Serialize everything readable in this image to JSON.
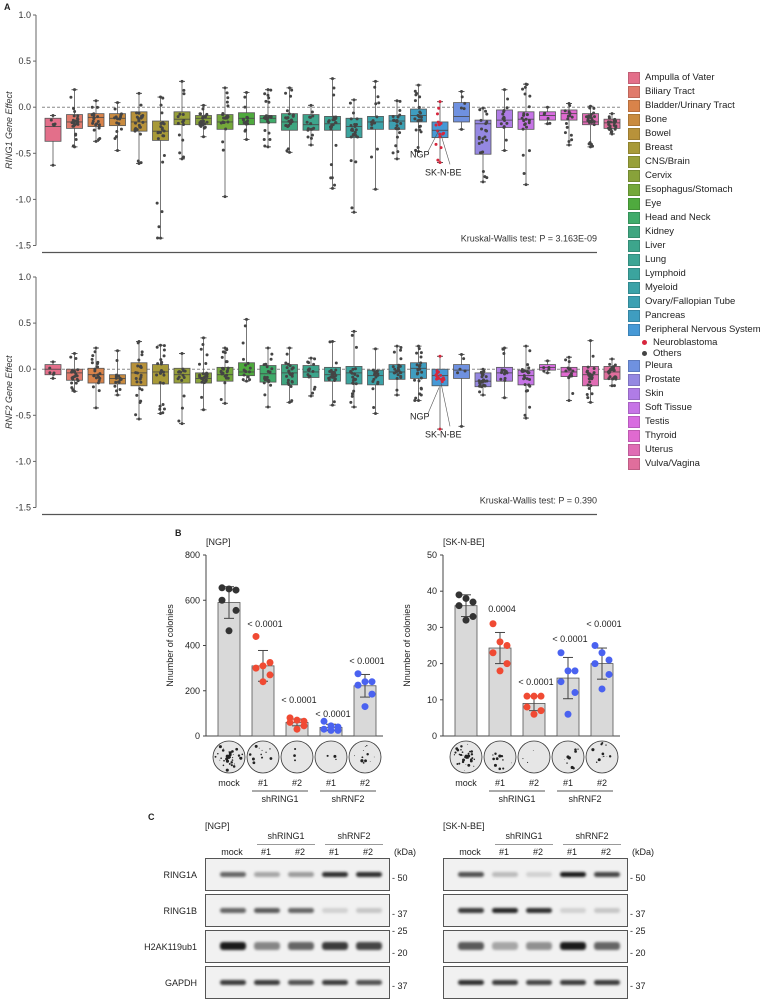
{
  "panel_labels": {
    "a": "A",
    "b": "B",
    "c": "C"
  },
  "legend": {
    "items": [
      {
        "label": "Ampulla of Vater",
        "color": "#e36f8a"
      },
      {
        "label": "Biliary Tract",
        "color": "#e07a6c"
      },
      {
        "label": "Bladder/Urinary Tract",
        "color": "#d9834a"
      },
      {
        "label": "Bone",
        "color": "#c98b3f"
      },
      {
        "label": "Bowel",
        "color": "#b8923a"
      },
      {
        "label": "Breast",
        "color": "#a89a38"
      },
      {
        "label": "CNS/Brain",
        "color": "#98a03a"
      },
      {
        "label": "Cervix",
        "color": "#88a23a"
      },
      {
        "label": "Esophagus/Stomach",
        "color": "#74a83a"
      },
      {
        "label": "Eye",
        "color": "#4faa3e"
      },
      {
        "label": "Head and Neck",
        "color": "#3fab6a"
      },
      {
        "label": "Kidney",
        "color": "#3fa680"
      },
      {
        "label": "Liver",
        "color": "#3da58c"
      },
      {
        "label": "Lung",
        "color": "#3ca595"
      },
      {
        "label": "Lymphoid",
        "color": "#3ba49e"
      },
      {
        "label": "Myeloid",
        "color": "#3ba2a8"
      },
      {
        "label": "Ovary/Fallopian Tube",
        "color": "#3ca0b2"
      },
      {
        "label": "Pancreas",
        "color": "#3f9dc0"
      },
      {
        "label": "Peripheral Nervous System",
        "color": "#4699d6"
      },
      {
        "label": "Pleura",
        "color": "#6f91e0"
      },
      {
        "label": "Prostate",
        "color": "#9588e2"
      },
      {
        "label": "Skin",
        "color": "#b07ce6"
      },
      {
        "label": "Soft Tissue",
        "color": "#c674e6"
      },
      {
        "label": "Testis",
        "color": "#d86ce0"
      },
      {
        "label": "Thyroid",
        "color": "#e06ad0"
      },
      {
        "label": "Uterus",
        "color": "#e06cb4"
      },
      {
        "label": "Vulva/Vagina",
        "color": "#e06e9c"
      }
    ],
    "sub_items": [
      {
        "label": "Neuroblastoma",
        "color": "#d7263d"
      },
      {
        "label": "Others",
        "color": "#444444"
      }
    ]
  },
  "chart_data": [
    {
      "type": "box",
      "ylabel": "RING1 Gene Effect",
      "ylim": [
        -1.5,
        1.0
      ],
      "yticks": [
        "1.0",
        "0.5",
        "0.0",
        "-0.5",
        "-1.0",
        "-1.5"
      ],
      "reference_line": 0,
      "stat_text": "Kruskal-Wallis test: P = 3.163E-09",
      "annotations": [
        "NGP",
        "SK-N-BE"
      ],
      "boxes": [
        [
          -0.63,
          -0.37,
          -0.21,
          -0.12,
          -0.09
        ],
        [
          -0.43,
          -0.23,
          -0.16,
          -0.08,
          0.19
        ],
        [
          -0.37,
          -0.21,
          -0.11,
          -0.07,
          0.07
        ],
        [
          -0.47,
          -0.2,
          -0.12,
          -0.07,
          0.05
        ],
        [
          -0.61,
          -0.26,
          -0.16,
          -0.05,
          0.15
        ],
        [
          -1.42,
          -0.36,
          -0.26,
          -0.15,
          0.11
        ],
        [
          -0.56,
          -0.19,
          -0.13,
          -0.05,
          0.28
        ],
        [
          -0.32,
          -0.19,
          -0.12,
          -0.09,
          0.02
        ],
        [
          -0.97,
          -0.24,
          -0.16,
          -0.08,
          0.21
        ],
        [
          -0.35,
          -0.19,
          -0.12,
          -0.06,
          0.16
        ],
        [
          -0.43,
          -0.17,
          -0.12,
          -0.09,
          0.19
        ],
        [
          -0.49,
          -0.25,
          -0.16,
          -0.07,
          0.21
        ],
        [
          -0.41,
          -0.25,
          -0.19,
          -0.08,
          0.02
        ],
        [
          -0.88,
          -0.25,
          -0.18,
          -0.1,
          0.31
        ],
        [
          -1.14,
          -0.33,
          -0.21,
          -0.12,
          0.08
        ],
        [
          -0.89,
          -0.24,
          -0.16,
          -0.1,
          0.28
        ],
        [
          -0.56,
          -0.24,
          -0.15,
          -0.09,
          0.07
        ],
        [
          -0.48,
          -0.16,
          -0.09,
          -0.02,
          0.24
        ],
        [
          -0.6,
          -0.33,
          -0.25,
          -0.16,
          0.06
        ],
        [
          -0.24,
          -0.16,
          -0.1,
          0.05,
          0.17
        ],
        [
          -0.81,
          -0.51,
          -0.18,
          -0.14,
          -0.01
        ],
        [
          -0.47,
          -0.22,
          -0.14,
          -0.03,
          0.19
        ],
        [
          -0.84,
          -0.24,
          -0.13,
          -0.05,
          0.25
        ],
        [
          -0.18,
          -0.14,
          -0.09,
          -0.05,
          0.0
        ],
        [
          -0.41,
          -0.14,
          -0.07,
          -0.03,
          0.04
        ],
        [
          -0.43,
          -0.19,
          -0.16,
          -0.07,
          0.01
        ],
        [
          -0.29,
          -0.23,
          -0.17,
          -0.13,
          -0.07
        ]
      ]
    },
    {
      "type": "box",
      "ylabel": "RNF2 Gene Effect",
      "ylim": [
        -1.5,
        1.0
      ],
      "yticks": [
        "1.0",
        "0.5",
        "0.0",
        "-0.5",
        "-1.0",
        "-1.5"
      ],
      "reference_line": 0,
      "stat_text": "Kruskal-Wallis test: P = 0.390",
      "annotations": [
        "NGP",
        "SK-N-BE"
      ],
      "boxes": [
        [
          -0.1,
          -0.06,
          0.0,
          0.05,
          0.08
        ],
        [
          -0.24,
          -0.12,
          -0.04,
          0.0,
          0.17
        ],
        [
          -0.42,
          -0.15,
          -0.06,
          0.01,
          0.23
        ],
        [
          -0.28,
          -0.16,
          -0.1,
          -0.06,
          0.2
        ],
        [
          -0.54,
          -0.18,
          -0.04,
          0.07,
          0.3
        ],
        [
          -0.48,
          -0.16,
          -0.03,
          0.05,
          0.26
        ],
        [
          -0.59,
          -0.15,
          -0.06,
          0.01,
          0.17
        ],
        [
          -0.44,
          -0.15,
          -0.1,
          -0.04,
          0.34
        ],
        [
          -0.37,
          -0.13,
          -0.06,
          0.02,
          0.23
        ],
        [
          -0.13,
          -0.07,
          -0.03,
          0.07,
          0.54
        ],
        [
          -0.41,
          -0.14,
          -0.05,
          0.04,
          0.23
        ],
        [
          -0.36,
          -0.17,
          -0.04,
          0.05,
          0.23
        ],
        [
          -0.29,
          -0.09,
          -0.03,
          0.04,
          0.12
        ],
        [
          -0.39,
          -0.13,
          -0.06,
          0.02,
          0.3
        ],
        [
          -0.41,
          -0.16,
          -0.04,
          0.03,
          0.41
        ],
        [
          -0.48,
          -0.17,
          -0.07,
          -0.01,
          0.22
        ],
        [
          -0.28,
          -0.11,
          -0.03,
          0.05,
          0.25
        ],
        [
          -0.34,
          -0.1,
          0.01,
          0.07,
          0.25
        ],
        [
          -0.65,
          -0.18,
          -0.07,
          0.0,
          0.14
        ],
        [
          -0.62,
          -0.1,
          -0.01,
          0.05,
          0.16
        ],
        [
          -0.28,
          -0.19,
          -0.13,
          -0.04,
          0.0
        ],
        [
          -0.31,
          -0.13,
          -0.04,
          0.02,
          0.23
        ],
        [
          -0.53,
          -0.17,
          -0.07,
          -0.01,
          0.25
        ],
        [
          -0.04,
          -0.01,
          0.02,
          0.05,
          0.09
        ],
        [
          -0.34,
          -0.08,
          -0.03,
          0.02,
          0.13
        ],
        [
          -0.36,
          -0.18,
          -0.06,
          0.03,
          0.31
        ],
        [
          -0.18,
          -0.11,
          -0.03,
          0.03,
          0.11
        ]
      ]
    },
    {
      "type": "bar",
      "title": "[NGP]",
      "ylabel": "Nnumber of colonies",
      "ylim": [
        0,
        800
      ],
      "yticks": [
        "0",
        "200",
        "400",
        "600",
        "800"
      ],
      "categories": [
        "mock",
        "#1",
        "#2",
        "#1",
        "#2"
      ],
      "groups": [
        "shRING1",
        "shRNF2"
      ],
      "values": [
        590,
        310,
        60,
        38,
        222
      ],
      "sd": [
        70,
        68,
        15,
        14,
        50
      ],
      "points": [
        [
          655,
          650,
          645,
          600,
          555,
          465
        ],
        [
          440,
          310,
          325,
          300,
          270,
          240
        ],
        [
          80,
          70,
          65,
          60,
          45,
          30
        ],
        [
          65,
          45,
          40,
          30,
          25,
          25
        ],
        [
          275,
          240,
          240,
          225,
          185,
          130
        ]
      ],
      "point_colors": [
        "#333333",
        "#f04a33",
        "#f04a33",
        "#4a62f0",
        "#4a62f0"
      ],
      "p_values": [
        "",
        "< 0.0001",
        "< 0.0001",
        "< 0.0001",
        "< 0.0001"
      ]
    },
    {
      "type": "bar",
      "title": "[SK-N-BE]",
      "ylabel": "Nnumber of colonies",
      "ylim": [
        0,
        50
      ],
      "yticks": [
        "0",
        "10",
        "20",
        "30",
        "40",
        "50"
      ],
      "categories": [
        "mock",
        "#1",
        "#2",
        "#1",
        "#2"
      ],
      "groups": [
        "shRING1",
        "shRNF2"
      ],
      "values": [
        36,
        24.3,
        9,
        16,
        20
      ],
      "sd": [
        3,
        4.3,
        2,
        5.7,
        4.3
      ],
      "points": [
        [
          39,
          38,
          37,
          36,
          33,
          32
        ],
        [
          31,
          26,
          25,
          23,
          20,
          18
        ],
        [
          11,
          11,
          11,
          8,
          7,
          6
        ],
        [
          23,
          18,
          18,
          15,
          12,
          6
        ],
        [
          25,
          23,
          21,
          20,
          17,
          13
        ]
      ],
      "point_colors": [
        "#333333",
        "#f04a33",
        "#f04a33",
        "#4a62f0",
        "#4a62f0"
      ],
      "p_values": [
        "",
        "0.0004",
        "< 0.0001",
        "< 0.0001",
        "< 0.0001"
      ]
    }
  ],
  "western": {
    "kda_unit": "(kDa)",
    "groups": [
      "shRING1",
      "shRNF2"
    ],
    "lanes": [
      "mock",
      "#1",
      "#2",
      "#1",
      "#2"
    ],
    "rows": [
      "RING1A",
      "RING1B",
      "H2AK119ub1",
      "GAPDH"
    ],
    "markers": [
      [
        "- 50"
      ],
      [
        "- 37"
      ],
      [
        "- 25",
        "- 20"
      ],
      [
        "- 37"
      ]
    ],
    "panels": [
      {
        "title": "[NGP]",
        "band_intensity": [
          [
            0.6,
            0.3,
            0.35,
            0.85,
            0.85
          ],
          [
            0.6,
            0.65,
            0.6,
            0.1,
            0.15
          ],
          [
            0.95,
            0.45,
            0.6,
            0.8,
            0.75
          ],
          [
            0.8,
            0.8,
            0.7,
            0.8,
            0.7
          ]
        ]
      },
      {
        "title": "[SK-N-BE]",
        "band_intensity": [
          [
            0.7,
            0.2,
            0.1,
            0.95,
            0.75
          ],
          [
            0.8,
            0.9,
            0.85,
            0.1,
            0.15
          ],
          [
            0.65,
            0.3,
            0.4,
            0.95,
            0.6
          ],
          [
            0.85,
            0.8,
            0.75,
            0.8,
            0.8
          ]
        ]
      }
    ]
  }
}
